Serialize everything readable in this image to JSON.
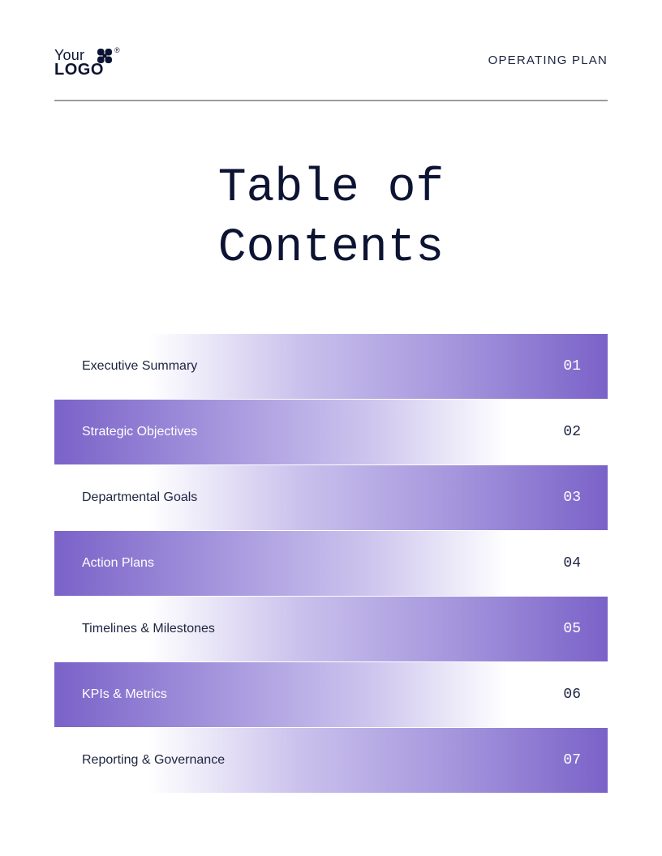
{
  "header": {
    "logo_line1": "Your",
    "logo_line2": "LOGO",
    "logo_reg": "®",
    "doc_type": "OPERATING PLAN"
  },
  "title": {
    "line1": "Table of",
    "line2": "Contents"
  },
  "toc": {
    "items": [
      {
        "label": "Executive Summary",
        "number": "01"
      },
      {
        "label": "Strategic Objectives",
        "number": "02"
      },
      {
        "label": "Departmental Goals",
        "number": "03"
      },
      {
        "label": "Action Plans",
        "number": "04"
      },
      {
        "label": "Timelines & Milestones",
        "number": "05"
      },
      {
        "label": "KPIs & Metrics",
        "number": "06"
      },
      {
        "label": "Reporting & Governance",
        "number": "07"
      }
    ]
  },
  "colors": {
    "text_dark": "#0d1433",
    "accent_purple": "#7a62c8",
    "accent_light": "#c9c0ec",
    "rule_gray": "#9c9c9c"
  },
  "icons": {
    "logo_mark": "quatrefoil-logo-icon"
  }
}
